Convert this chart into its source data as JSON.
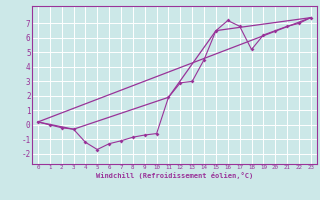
{
  "title": "",
  "xlabel": "Windchill (Refroidissement éolien,°C)",
  "bg_color": "#cce8e8",
  "grid_color": "#ffffff",
  "line_color": "#993399",
  "xlim": [
    -0.5,
    23.5
  ],
  "ylim": [
    -2.7,
    8.2
  ],
  "xticks": [
    0,
    1,
    2,
    3,
    4,
    5,
    6,
    7,
    8,
    9,
    10,
    11,
    12,
    13,
    14,
    15,
    16,
    17,
    18,
    19,
    20,
    21,
    22,
    23
  ],
  "yticks": [
    -2,
    -1,
    0,
    1,
    2,
    3,
    4,
    5,
    6,
    7
  ],
  "line1_x": [
    0,
    1,
    2,
    3,
    4,
    5,
    6,
    7,
    8,
    9,
    10,
    11,
    12,
    13,
    14,
    15,
    16,
    17,
    18,
    19,
    20,
    21,
    22,
    23
  ],
  "line1_y": [
    0.2,
    0.0,
    -0.2,
    -0.3,
    -1.2,
    -1.7,
    -1.3,
    -1.1,
    -0.85,
    -0.7,
    -0.6,
    1.9,
    2.9,
    3.0,
    4.5,
    6.5,
    7.2,
    6.8,
    5.2,
    6.2,
    6.5,
    6.8,
    7.0,
    7.4
  ],
  "line2_x": [
    0,
    23
  ],
  "line2_y": [
    0.2,
    7.4
  ],
  "line3_x": [
    0,
    3,
    11,
    15,
    23
  ],
  "line3_y": [
    0.2,
    -0.3,
    1.9,
    6.5,
    7.4
  ],
  "xlabel_fontsize": 5.0,
  "tick_fontsize_x": 4.2,
  "tick_fontsize_y": 5.5
}
